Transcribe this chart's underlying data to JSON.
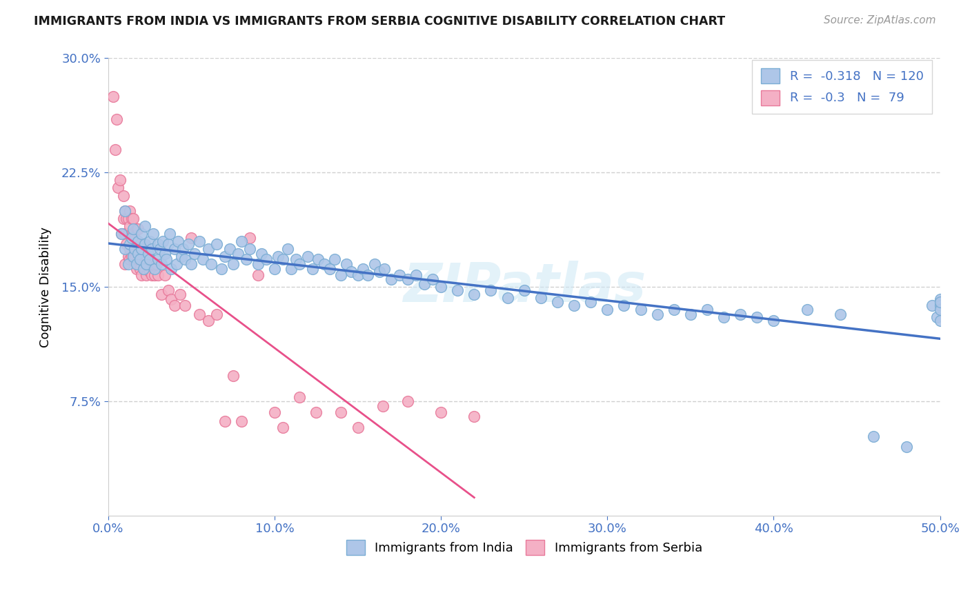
{
  "title": "IMMIGRANTS FROM INDIA VS IMMIGRANTS FROM SERBIA COGNITIVE DISABILITY CORRELATION CHART",
  "source": "Source: ZipAtlas.com",
  "ylabel": "Cognitive Disability",
  "xlim": [
    0.0,
    0.5
  ],
  "ylim": [
    0.0,
    0.3
  ],
  "yticks": [
    0.075,
    0.15,
    0.225,
    0.3
  ],
  "ytick_labels": [
    "7.5%",
    "15.0%",
    "22.5%",
    "30.0%"
  ],
  "xticks": [
    0.0,
    0.1,
    0.2,
    0.3,
    0.4,
    0.5
  ],
  "xtick_labels": [
    "0.0%",
    "10.0%",
    "20.0%",
    "30.0%",
    "40.0%",
    "50.0%"
  ],
  "india_face_color": "#aec6e8",
  "india_edge_color": "#7aadd4",
  "serbia_face_color": "#f4b0c5",
  "serbia_edge_color": "#e8799a",
  "india_line_color": "#4472c4",
  "serbia_line_color": "#e8508a",
  "R_india": -0.318,
  "N_india": 120,
  "R_serbia": -0.3,
  "N_serbia": 79,
  "watermark": "ZIPatlas",
  "legend_india": "Immigrants from India",
  "legend_serbia": "Immigrants from Serbia",
  "india_scatter_x": [
    0.008,
    0.01,
    0.01,
    0.012,
    0.013,
    0.014,
    0.015,
    0.015,
    0.016,
    0.017,
    0.018,
    0.018,
    0.019,
    0.02,
    0.02,
    0.021,
    0.022,
    0.022,
    0.023,
    0.024,
    0.025,
    0.025,
    0.026,
    0.027,
    0.028,
    0.03,
    0.03,
    0.031,
    0.032,
    0.033,
    0.034,
    0.035,
    0.036,
    0.037,
    0.038,
    0.04,
    0.041,
    0.042,
    0.044,
    0.045,
    0.046,
    0.048,
    0.05,
    0.052,
    0.055,
    0.057,
    0.06,
    0.062,
    0.065,
    0.068,
    0.07,
    0.073,
    0.075,
    0.078,
    0.08,
    0.083,
    0.085,
    0.09,
    0.092,
    0.095,
    0.1,
    0.102,
    0.105,
    0.108,
    0.11,
    0.113,
    0.115,
    0.12,
    0.123,
    0.126,
    0.13,
    0.133,
    0.136,
    0.14,
    0.143,
    0.146,
    0.15,
    0.153,
    0.156,
    0.16,
    0.163,
    0.166,
    0.17,
    0.175,
    0.18,
    0.185,
    0.19,
    0.195,
    0.2,
    0.21,
    0.22,
    0.23,
    0.24,
    0.25,
    0.26,
    0.27,
    0.28,
    0.29,
    0.3,
    0.31,
    0.32,
    0.33,
    0.34,
    0.35,
    0.36,
    0.37,
    0.38,
    0.39,
    0.4,
    0.42,
    0.44,
    0.46,
    0.48,
    0.495,
    0.498,
    0.5,
    0.5,
    0.5,
    0.5,
    0.5
  ],
  "india_scatter_y": [
    0.185,
    0.175,
    0.2,
    0.165,
    0.178,
    0.182,
    0.17,
    0.188,
    0.175,
    0.165,
    0.18,
    0.172,
    0.168,
    0.185,
    0.175,
    0.162,
    0.178,
    0.19,
    0.165,
    0.172,
    0.18,
    0.168,
    0.175,
    0.185,
    0.162,
    0.178,
    0.168,
    0.175,
    0.165,
    0.18,
    0.172,
    0.168,
    0.178,
    0.185,
    0.162,
    0.175,
    0.165,
    0.18,
    0.17,
    0.175,
    0.168,
    0.178,
    0.165,
    0.172,
    0.18,
    0.168,
    0.175,
    0.165,
    0.178,
    0.162,
    0.17,
    0.175,
    0.165,
    0.172,
    0.18,
    0.168,
    0.175,
    0.165,
    0.172,
    0.168,
    0.162,
    0.17,
    0.168,
    0.175,
    0.162,
    0.168,
    0.165,
    0.17,
    0.162,
    0.168,
    0.165,
    0.162,
    0.168,
    0.158,
    0.165,
    0.16,
    0.158,
    0.162,
    0.158,
    0.165,
    0.16,
    0.162,
    0.155,
    0.158,
    0.155,
    0.158,
    0.152,
    0.155,
    0.15,
    0.148,
    0.145,
    0.148,
    0.143,
    0.148,
    0.143,
    0.14,
    0.138,
    0.14,
    0.135,
    0.138,
    0.135,
    0.132,
    0.135,
    0.132,
    0.135,
    0.13,
    0.132,
    0.13,
    0.128,
    0.135,
    0.132,
    0.052,
    0.045,
    0.138,
    0.13,
    0.128,
    0.142,
    0.138,
    0.135,
    0.14
  ],
  "serbia_scatter_x": [
    0.003,
    0.004,
    0.005,
    0.006,
    0.007,
    0.008,
    0.009,
    0.009,
    0.01,
    0.01,
    0.01,
    0.011,
    0.011,
    0.012,
    0.012,
    0.012,
    0.013,
    0.013,
    0.013,
    0.013,
    0.014,
    0.014,
    0.014,
    0.015,
    0.015,
    0.015,
    0.015,
    0.016,
    0.016,
    0.016,
    0.017,
    0.017,
    0.017,
    0.018,
    0.018,
    0.018,
    0.019,
    0.019,
    0.02,
    0.02,
    0.021,
    0.021,
    0.022,
    0.022,
    0.023,
    0.023,
    0.024,
    0.025,
    0.026,
    0.027,
    0.028,
    0.029,
    0.03,
    0.032,
    0.034,
    0.036,
    0.038,
    0.04,
    0.043,
    0.046,
    0.05,
    0.055,
    0.06,
    0.065,
    0.07,
    0.075,
    0.08,
    0.085,
    0.09,
    0.1,
    0.105,
    0.115,
    0.125,
    0.14,
    0.15,
    0.165,
    0.18,
    0.2,
    0.22
  ],
  "serbia_scatter_y": [
    0.275,
    0.24,
    0.26,
    0.215,
    0.22,
    0.185,
    0.195,
    0.21,
    0.2,
    0.185,
    0.165,
    0.195,
    0.178,
    0.185,
    0.17,
    0.195,
    0.19,
    0.175,
    0.2,
    0.168,
    0.185,
    0.17,
    0.195,
    0.178,
    0.185,
    0.168,
    0.195,
    0.175,
    0.182,
    0.168,
    0.178,
    0.162,
    0.188,
    0.168,
    0.178,
    0.188,
    0.162,
    0.175,
    0.172,
    0.158,
    0.168,
    0.178,
    0.162,
    0.172,
    0.158,
    0.17,
    0.165,
    0.16,
    0.158,
    0.165,
    0.158,
    0.165,
    0.158,
    0.145,
    0.158,
    0.148,
    0.142,
    0.138,
    0.145,
    0.138,
    0.182,
    0.132,
    0.128,
    0.132,
    0.062,
    0.092,
    0.062,
    0.182,
    0.158,
    0.068,
    0.058,
    0.078,
    0.068,
    0.068,
    0.058,
    0.072,
    0.075,
    0.068,
    0.065
  ]
}
